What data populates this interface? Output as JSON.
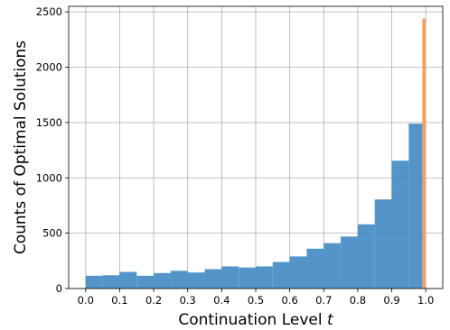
{
  "chart_data": {
    "type": "bar",
    "xlabel": "Continuation Level",
    "xlabel_var": "t",
    "ylabel": "Counts of Optimal Solutions",
    "xlim": [
      -0.05,
      1.05
    ],
    "ylim": [
      0,
      2550
    ],
    "grid": true,
    "xticks": [
      "0.0",
      "0.1",
      "0.2",
      "0.3",
      "0.4",
      "0.5",
      "0.6",
      "0.7",
      "0.8",
      "0.9",
      "1.0"
    ],
    "yticks": [
      "0",
      "500",
      "1000",
      "1500",
      "2000",
      "2500"
    ],
    "series": [
      {
        "color": "#4a8fc5",
        "bin_edges": [
          0.0,
          0.05,
          0.1,
          0.15,
          0.2,
          0.25,
          0.3,
          0.35,
          0.4,
          0.45,
          0.5,
          0.55,
          0.6,
          0.65,
          0.7,
          0.75,
          0.8,
          0.85,
          0.9,
          0.95,
          0.99
        ],
        "values": [
          115,
          120,
          150,
          115,
          140,
          160,
          145,
          175,
          200,
          190,
          200,
          240,
          290,
          360,
          410,
          470,
          580,
          805,
          1155,
          1490
        ]
      },
      {
        "color": "#f5a15a",
        "bin_edges": [
          0.99,
          1.0
        ],
        "values": [
          2440
        ]
      }
    ]
  }
}
